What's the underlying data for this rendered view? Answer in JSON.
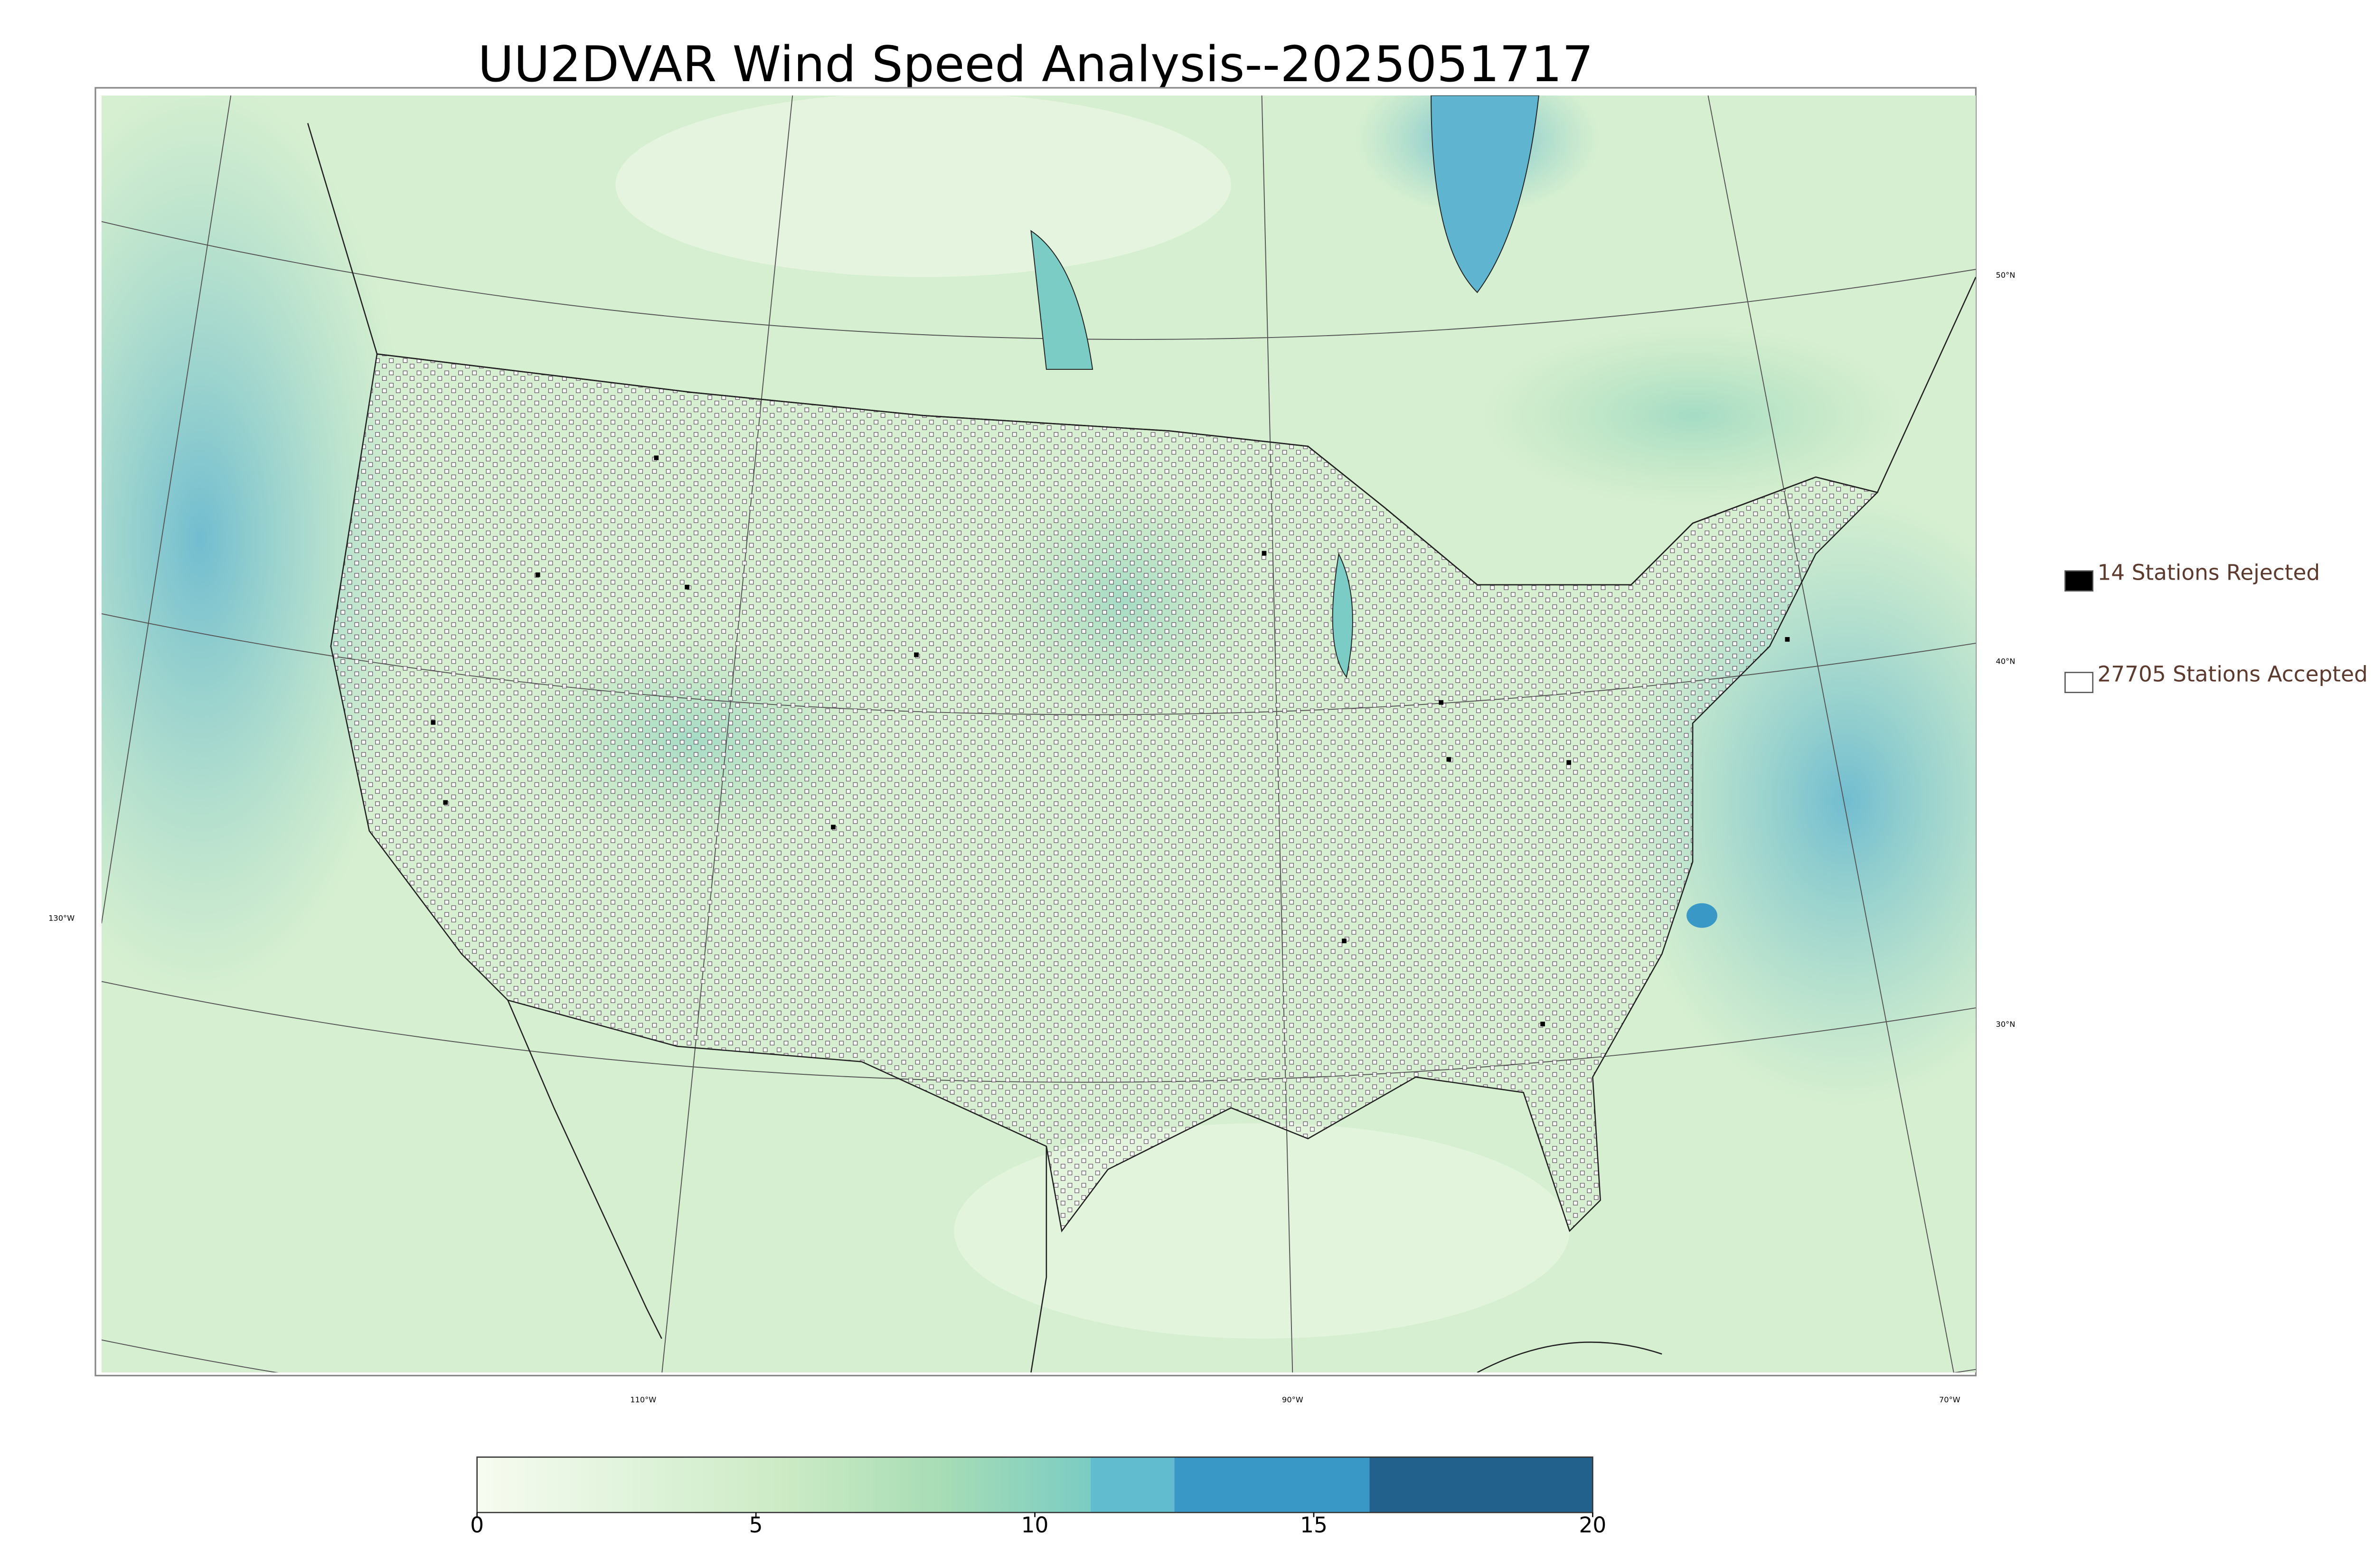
{
  "title": "UU2DVAR Wind Speed Analysis--2025051717",
  "legend": [
    {
      "label": "14 Stations Rejected",
      "color": "#000000"
    },
    {
      "label": "27705 Stations Accepted",
      "color": "#ffffff"
    }
  ],
  "map": {
    "longitude_labels": [
      "130°W",
      "110°W",
      "90°W",
      "70°W"
    ],
    "latitude_labels": [
      "50°N",
      "40°N",
      "30°N"
    ]
  },
  "colorbar": {
    "lim": [
      0,
      20
    ],
    "ticks": [
      0,
      5,
      10,
      15,
      20
    ],
    "gradient": {
      "from": 0,
      "to": 11,
      "colors": [
        "#f7fcf0",
        "#e0f3db",
        "#ccebc5",
        "#a8ddb5",
        "#7bccc4"
      ]
    },
    "steps": [
      {
        "from": 11,
        "to": 12.5,
        "color": "#62bccf"
      },
      {
        "from": 12.5,
        "to": 16,
        "color": "#3a98c6"
      },
      {
        "from": 16,
        "to": 20,
        "color": "#21618c"
      }
    ]
  }
}
